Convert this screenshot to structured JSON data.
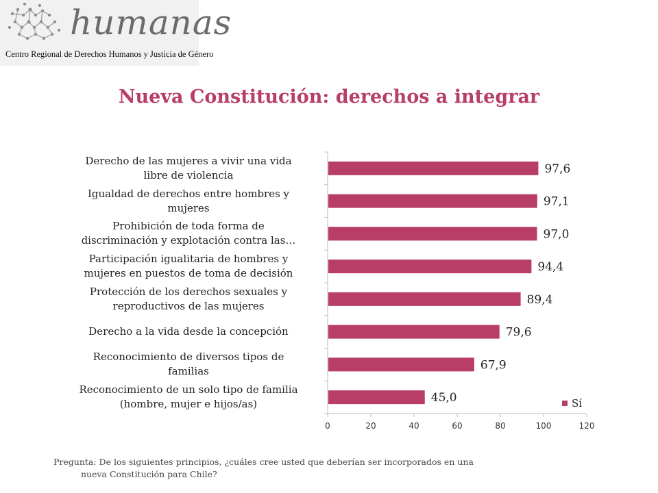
{
  "logo": {
    "wordmark": "humanas",
    "subtitle": "Centro Regional de Derechos Humanos y Justicia de Género"
  },
  "chart_data": {
    "type": "bar",
    "orientation": "horizontal",
    "title": "Nueva Constitución: derechos a integrar",
    "categories": [
      [
        "Derecho de las mujeres a vivir una vida",
        "libre de violencia"
      ],
      [
        "Igualdad de derechos entre hombres y",
        "mujeres"
      ],
      [
        "Prohibición de toda forma de",
        "discriminación y explotación contra las…"
      ],
      [
        "Participación igualitaria de hombres y",
        "mujeres en puestos de toma de decisión"
      ],
      [
        "Protección de los derechos sexuales y",
        "reproductivos de las mujeres"
      ],
      [
        "Derecho a la vida desde la concepción"
      ],
      [
        "Reconocimiento de diversos tipos de",
        "familias"
      ],
      [
        "Reconocimiento de un solo tipo de familia",
        "(hombre, mujer e hijos/as)"
      ]
    ],
    "series": [
      {
        "name": "Sí",
        "values": [
          97.6,
          97.1,
          97.0,
          94.4,
          89.4,
          79.6,
          67.9,
          45.0
        ],
        "labels": [
          "97,6",
          "97,1",
          "97,0",
          "94,4",
          "89,4",
          "79,6",
          "67,9",
          "45,0"
        ]
      }
    ],
    "xlim": [
      0,
      120
    ],
    "xticks": [
      "0",
      "20",
      "40",
      "60",
      "80",
      "100",
      "120"
    ],
    "grid": false,
    "legend_position": "bottom-right",
    "bar_color": "#b83e68"
  },
  "footnote": {
    "line1": "Pregunta: De los siguientes principios, ¿cuáles cree usted que deberían ser incorporados en una",
    "line2": "nueva Constitución para Chile?"
  }
}
